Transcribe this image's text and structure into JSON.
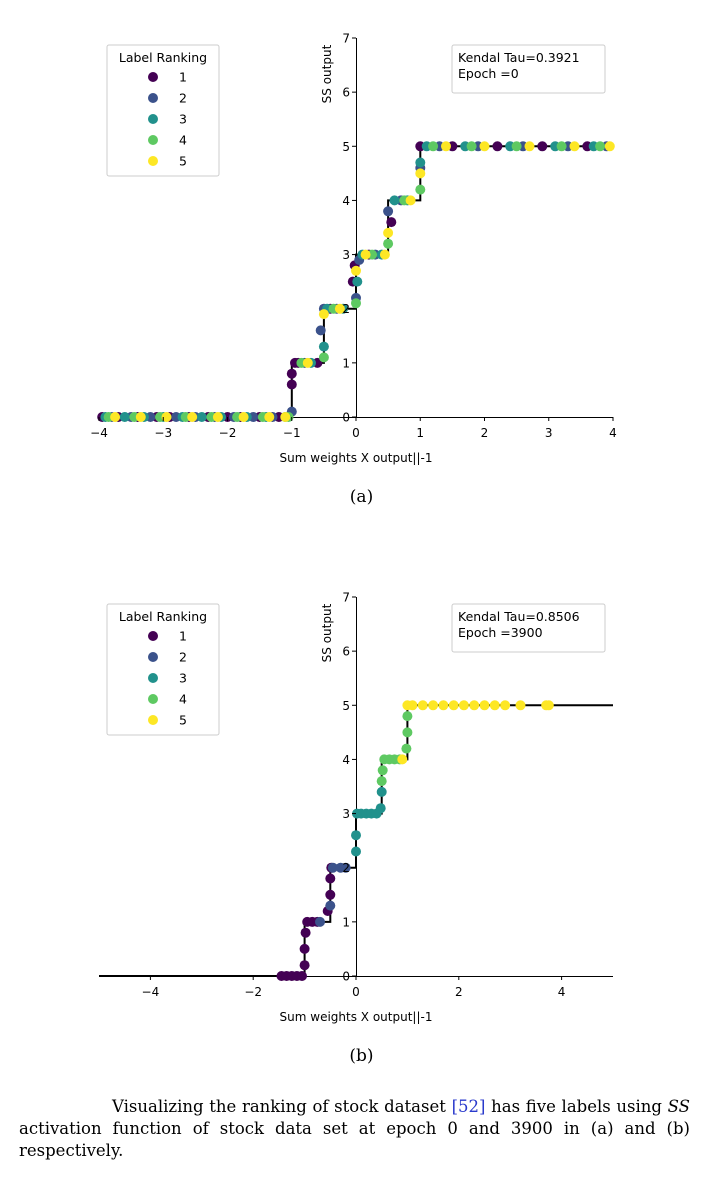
{
  "chart_data": [
    {
      "type": "scatter",
      "xlabel": "Sum weights X output||-1",
      "ylabel": "SS output",
      "xlim": [
        -4,
        4
      ],
      "ylim": [
        0,
        7
      ],
      "xticks": [
        "−4",
        "−3",
        "−2",
        "−1",
        "0",
        "1",
        "2",
        "3",
        "4"
      ],
      "yticks": [
        "0",
        "1",
        "2",
        "3",
        "4",
        "5",
        "6",
        "7"
      ],
      "grid": false,
      "legend": {
        "title": "Label Ranking",
        "placement": "top-left",
        "entries": [
          {
            "name": "1",
            "color": "#440154"
          },
          {
            "name": "2",
            "color": "#3b528b"
          },
          {
            "name": "3",
            "color": "#21918c"
          },
          {
            "name": "4",
            "color": "#5ec962"
          },
          {
            "name": "5",
            "color": "#fde725"
          }
        ]
      },
      "annotation": {
        "lines": [
          "Kendal Tau=0.3921",
          "Epoch =0"
        ],
        "placement": "top-right"
      },
      "step_function": {
        "x": [
          -4,
          -1,
          -1,
          -0.5,
          -0.5,
          0,
          0,
          0.5,
          0.5,
          1,
          1,
          4
        ],
        "y": [
          0,
          0,
          1,
          1,
          2,
          2,
          3,
          3,
          4,
          4,
          5,
          5
        ]
      },
      "series": [
        {
          "label": 1,
          "x": [
            -3.95,
            -3.7,
            -3.4,
            -3.1,
            -2.9,
            -2.6,
            -2.3,
            -2.0,
            -1.8,
            -1.5,
            -1.2,
            -1.0,
            -1.0,
            -0.95,
            -0.9,
            -0.6,
            -0.4,
            -0.05,
            -0.02,
            0.2,
            0.55,
            1.0,
            1.5,
            2.2,
            2.9,
            3.6
          ],
          "y": [
            0,
            0,
            0,
            0,
            0,
            0,
            0,
            0,
            0,
            0,
            0,
            0.6,
            0.8,
            1,
            1,
            1,
            2,
            2.5,
            2.8,
            3,
            3.6,
            5,
            5,
            5,
            5,
            5
          ]
        },
        {
          "label": 2,
          "x": [
            -3.8,
            -3.5,
            -3.2,
            -2.8,
            -2.5,
            -2.2,
            -1.9,
            -1.6,
            -1.3,
            -1.0,
            -0.8,
            -0.55,
            -0.5,
            -0.3,
            0.0,
            0.05,
            0.3,
            0.5,
            0.7,
            1.0,
            1.3,
            1.9,
            2.6,
            3.3,
            3.9
          ],
          "y": [
            0,
            0,
            0,
            0,
            0,
            0,
            0,
            0,
            0,
            0.1,
            1,
            1.6,
            2,
            2,
            2.2,
            2.9,
            3,
            3.8,
            4,
            4.6,
            5,
            5,
            5,
            5,
            5
          ]
        },
        {
          "label": 3,
          "x": [
            -3.9,
            -3.6,
            -3.3,
            -3.0,
            -2.7,
            -2.4,
            -2.1,
            -1.7,
            -1.4,
            -1.1,
            -0.7,
            -0.5,
            -0.45,
            -0.2,
            0.02,
            0.1,
            0.4,
            0.6,
            0.8,
            1.0,
            1.1,
            1.7,
            2.4,
            3.1,
            3.7
          ],
          "y": [
            0,
            0,
            0,
            0,
            0,
            0,
            0,
            0,
            0,
            0,
            1,
            1.3,
            2,
            2,
            2.5,
            3,
            3,
            4,
            4,
            4.7,
            5,
            5,
            5,
            5,
            5
          ]
        },
        {
          "label": 4,
          "x": [
            -3.85,
            -3.45,
            -3.05,
            -2.65,
            -2.25,
            -1.85,
            -1.45,
            -1.05,
            -0.85,
            -0.5,
            -0.35,
            0.0,
            0.25,
            0.5,
            0.75,
            1.0,
            1.2,
            1.8,
            2.5,
            3.2,
            3.8
          ],
          "y": [
            0,
            0,
            0,
            0,
            0,
            0,
            0,
            0,
            1,
            1.1,
            2,
            2.1,
            3,
            3.2,
            4,
            4.2,
            5,
            5,
            5,
            5,
            5
          ]
        },
        {
          "label": 5,
          "x": [
            -3.75,
            -3.35,
            -2.95,
            -2.55,
            -2.15,
            -1.75,
            -1.35,
            -1.1,
            -0.75,
            -0.5,
            -0.25,
            0.0,
            0.15,
            0.45,
            0.5,
            0.85,
            1.0,
            1.4,
            2.0,
            2.7,
            3.4,
            3.95
          ],
          "y": [
            0,
            0,
            0,
            0,
            0,
            0,
            0,
            0,
            1,
            1.9,
            2,
            2.7,
            3,
            3,
            3.4,
            4,
            4.5,
            5,
            5,
            5,
            5,
            5
          ]
        }
      ]
    },
    {
      "type": "scatter",
      "xlabel": "Sum weights X output||-1",
      "ylabel": "SS output",
      "xlim": [
        -5,
        5
      ],
      "ylim": [
        0,
        7
      ],
      "xticks": [
        "−4",
        "−2",
        "0",
        "2",
        "4"
      ],
      "yticks": [
        "0",
        "1",
        "2",
        "3",
        "4",
        "5",
        "6",
        "7"
      ],
      "grid": false,
      "legend": {
        "title": "Label Ranking",
        "placement": "top-left",
        "entries": [
          {
            "name": "1",
            "color": "#440154"
          },
          {
            "name": "2",
            "color": "#3b528b"
          },
          {
            "name": "3",
            "color": "#21918c"
          },
          {
            "name": "4",
            "color": "#5ec962"
          },
          {
            "name": "5",
            "color": "#fde725"
          }
        ]
      },
      "annotation": {
        "lines": [
          "Kendal Tau=0.8506",
          "Epoch =3900"
        ],
        "placement": "top-right"
      },
      "step_function": {
        "x": [
          -5,
          -1,
          -1,
          -0.5,
          -0.5,
          0,
          0,
          0.5,
          0.5,
          1,
          1,
          5
        ],
        "y": [
          0,
          0,
          1,
          1,
          2,
          2,
          3,
          3,
          4,
          4,
          5,
          5
        ]
      },
      "series": [
        {
          "label": 1,
          "x": [
            -1.45,
            -1.35,
            -1.25,
            -1.15,
            -1.05,
            -1.0,
            -1.0,
            -0.98,
            -0.95,
            -0.85,
            -0.75,
            -0.55,
            -0.5,
            -0.5,
            -0.48
          ],
          "y": [
            0,
            0,
            0,
            0,
            0,
            0.2,
            0.5,
            0.8,
            1,
            1,
            1,
            1.2,
            1.5,
            1.8,
            2
          ]
        },
        {
          "label": 2,
          "x": [
            -0.7,
            -0.5,
            -0.45,
            -0.3,
            -0.2
          ],
          "y": [
            1,
            1.3,
            2,
            2,
            2
          ]
        },
        {
          "label": 3,
          "x": [
            0.0,
            0.0,
            0.02,
            0.1,
            0.2,
            0.3,
            0.4,
            0.48,
            0.5
          ],
          "y": [
            2.3,
            2.6,
            3,
            3,
            3,
            3,
            3,
            3.1,
            3.4
          ]
        },
        {
          "label": 4,
          "x": [
            0.5,
            0.52,
            0.55,
            0.65,
            0.75,
            0.85,
            0.98,
            1.0,
            1.0
          ],
          "y": [
            3.6,
            3.8,
            4,
            4,
            4,
            4,
            4.2,
            4.5,
            4.8
          ]
        },
        {
          "label": 5,
          "x": [
            0.9,
            1.0,
            1.1,
            1.3,
            1.5,
            1.7,
            1.9,
            2.1,
            2.3,
            2.5,
            2.7,
            2.9,
            3.2,
            3.7,
            3.75
          ],
          "y": [
            4,
            5,
            5,
            5,
            5,
            5,
            5,
            5,
            5,
            5,
            5,
            5,
            5,
            5,
            5
          ]
        }
      ]
    }
  ],
  "sublabels": [
    "(a)",
    "(b)"
  ],
  "caption": {
    "before_ref": "Visualizing the ranking of stock dataset ",
    "ref": "[52]",
    "after_ref": " has five labels using ",
    "ss": "SS",
    "rest": " activation function of stock data set at epoch 0 and 3900 in (a) and (b) respectively."
  }
}
